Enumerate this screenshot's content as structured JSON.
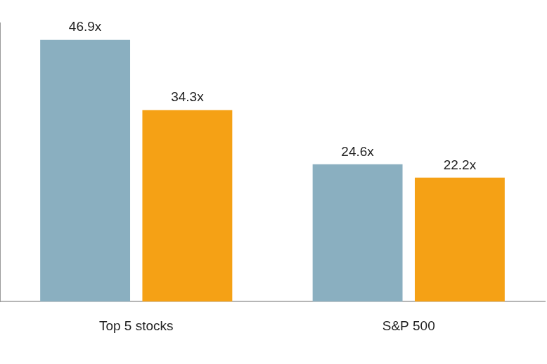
{
  "chart_data": {
    "type": "bar",
    "categories": [
      "Top 5 stocks",
      "S&P 500"
    ],
    "series": [
      {
        "color": "#8aafc0",
        "values": [
          46.9,
          24.6
        ],
        "value_labels": [
          "46.9x",
          "24.6x"
        ]
      },
      {
        "color": "#f5a115",
        "values": [
          34.3,
          22.2
        ],
        "value_labels": [
          "34.3x",
          "22.2x"
        ]
      }
    ],
    "ylim": [
      0,
      50
    ],
    "grid": false,
    "data_labels": true,
    "tick_labels": "x"
  }
}
